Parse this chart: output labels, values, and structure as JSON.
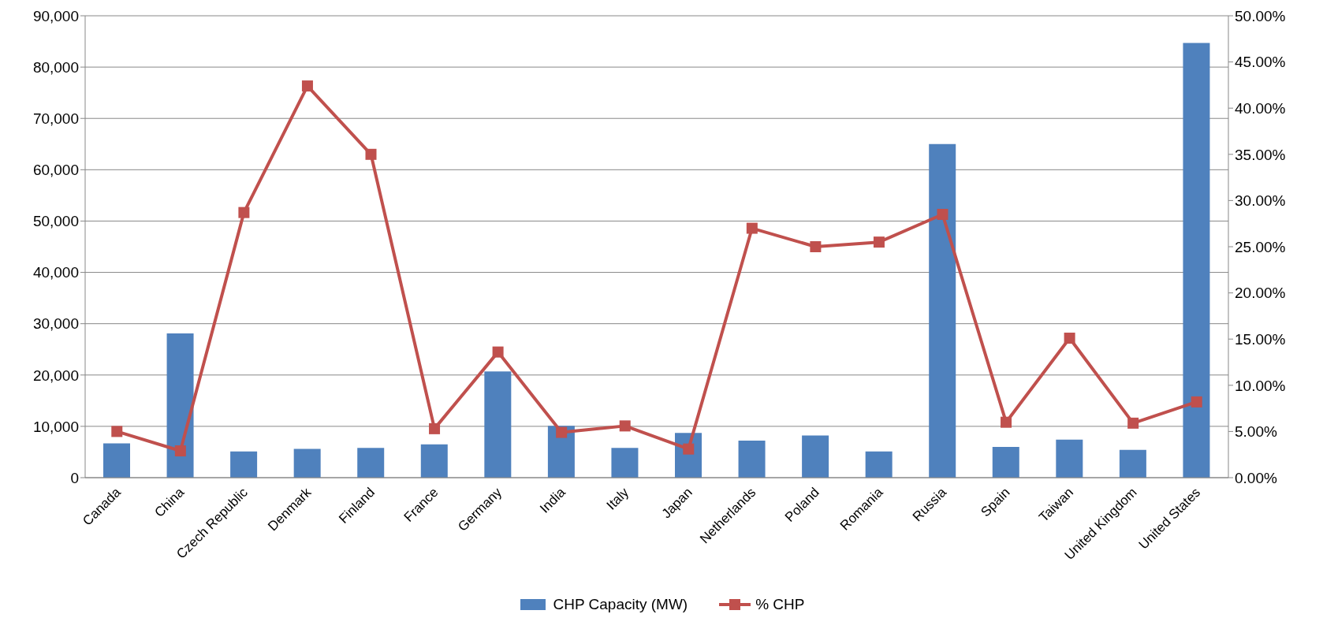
{
  "chart_data": {
    "type": "bar",
    "categories": [
      "Canada",
      "China",
      "Czech Republic",
      "Denmark",
      "Finland",
      "France",
      "Germany",
      "India",
      "Italy",
      "Japan",
      "Netherlands",
      "Poland",
      "Romania",
      "Russia",
      "Spain",
      "Taiwan",
      "United Kingdom",
      "United States"
    ],
    "series": [
      {
        "name": "CHP Capacity (MW)",
        "color": "#4f81bd",
        "values": [
          6700,
          28100,
          5100,
          5600,
          5800,
          6500,
          20700,
          10100,
          5800,
          8700,
          7200,
          8200,
          5100,
          65000,
          6000,
          7400,
          5400,
          84700
        ]
      },
      {
        "name": "% CHP",
        "type": "line",
        "axis": "y2",
        "color": "#c0504d",
        "values": [
          5,
          2.9,
          28.7,
          42.4,
          35,
          5.3,
          13.6,
          4.9,
          5.6,
          3.1,
          27,
          25,
          25.5,
          28.5,
          6,
          15.1,
          5.9,
          8.2
        ]
      }
    ],
    "ylim": [
      0,
      90000
    ],
    "yticks": [
      {
        "value": 0,
        "label": "0"
      },
      {
        "value": 10000,
        "label": "10,000"
      },
      {
        "value": 20000,
        "label": "20,000"
      },
      {
        "value": 30000,
        "label": "30,000"
      },
      {
        "value": 40000,
        "label": "40,000"
      },
      {
        "value": 50000,
        "label": "50,000"
      },
      {
        "value": 60000,
        "label": "60,000"
      },
      {
        "value": 70000,
        "label": "70,000"
      },
      {
        "value": 80000,
        "label": "80,000"
      },
      {
        "value": 90000,
        "label": "90,000"
      }
    ],
    "y2lim": [
      0,
      50
    ],
    "y2ticks": [
      {
        "value": 0,
        "label": "0.00%"
      },
      {
        "value": 5,
        "label": "5.00%"
      },
      {
        "value": 10,
        "label": "10.00%"
      },
      {
        "value": 15,
        "label": "15.00%"
      },
      {
        "value": 20,
        "label": "20.00%"
      },
      {
        "value": 25,
        "label": "25.00%"
      },
      {
        "value": 30,
        "label": "30.00%"
      },
      {
        "value": 35,
        "label": "35.00%"
      },
      {
        "value": 40,
        "label": "40.00%"
      },
      {
        "value": 45,
        "label": "45.00%"
      },
      {
        "value": 50,
        "label": "50.00%"
      }
    ],
    "grid": "y",
    "legend": "bottom",
    "marker": "square",
    "line_style": "solid"
  }
}
